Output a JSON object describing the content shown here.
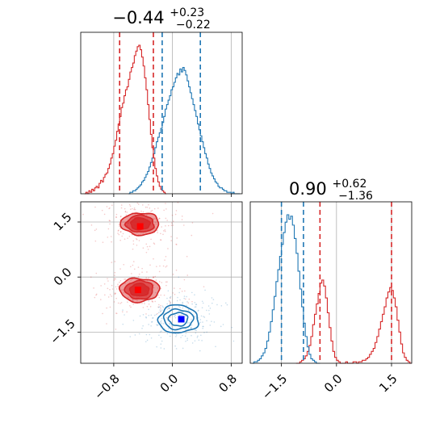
{
  "chart_data": {
    "type": "corner",
    "colors": {
      "series_a": "#d62728",
      "series_b": "#1f77b4",
      "marker_a": "#ff0000",
      "marker_b": "#0000ff",
      "grid": "#b0b0b0"
    },
    "params": [
      {
        "title": {
          "value": "−0.44",
          "plus": "+0.23",
          "minus": "−0.22"
        },
        "range": [
          -1.25,
          0.95
        ],
        "ticks": [
          -0.8,
          0.0,
          0.8
        ],
        "tick_labels": [
          "−0.8",
          "0.0",
          "0.8"
        ],
        "quantiles": {
          "series_a": [
            -0.72,
            -0.26
          ],
          "series_b": [
            -0.14,
            0.38
          ]
        }
      },
      {
        "title": {
          "value": "0.90",
          "plus": "+0.62",
          "minus": "−1.36"
        },
        "range": [
          -2.35,
          2.05
        ],
        "ticks": [
          -1.5,
          0.0,
          1.5
        ],
        "tick_labels": [
          "−1.5",
          "0.0",
          "1.5"
        ],
        "quantiles": {
          "series_a": [
            -0.45,
            1.5
          ],
          "series_b": [
            -1.5,
            -0.9
          ]
        }
      }
    ],
    "histograms": {
      "p1": {
        "series_a": {
          "bins": [
            -1.2,
            -1.18,
            -1.16,
            -1.14,
            -1.12,
            -1.1,
            -1.08,
            -1.06,
            -1.04,
            -1.02,
            -1.0,
            -0.98,
            -0.96,
            -0.94,
            -0.92,
            -0.9,
            -0.88,
            -0.86,
            -0.84,
            -0.82,
            -0.8,
            -0.78,
            -0.76,
            -0.74,
            -0.72,
            -0.7,
            -0.68,
            -0.66,
            -0.64,
            -0.62,
            -0.6,
            -0.58,
            -0.56,
            -0.54,
            -0.52,
            -0.5,
            -0.48,
            -0.46,
            -0.44,
            -0.42,
            -0.4,
            -0.38,
            -0.36,
            -0.34,
            -0.32,
            -0.3,
            -0.28,
            -0.26,
            -0.24,
            -0.22,
            -0.2,
            -0.18,
            -0.16,
            -0.14,
            -0.12,
            -0.1
          ],
          "counts": [
            0.0,
            0.01,
            0.0,
            0.02,
            0.01,
            0.03,
            0.02,
            0.04,
            0.05,
            0.04,
            0.07,
            0.09,
            0.08,
            0.11,
            0.13,
            0.14,
            0.17,
            0.2,
            0.24,
            0.27,
            0.32,
            0.36,
            0.42,
            0.47,
            0.52,
            0.58,
            0.61,
            0.66,
            0.7,
            0.72,
            0.77,
            0.82,
            0.85,
            0.88,
            0.93,
            0.96,
            0.99,
            1.0,
            0.97,
            0.92,
            0.86,
            0.78,
            0.7,
            0.6,
            0.5,
            0.4,
            0.31,
            0.24,
            0.17,
            0.12,
            0.08,
            0.05,
            0.03,
            0.02,
            0.01,
            0.0
          ]
        },
        "series_b": {
          "bins": [
            -0.6,
            -0.58,
            -0.56,
            -0.54,
            -0.52,
            -0.5,
            -0.48,
            -0.46,
            -0.44,
            -0.42,
            -0.4,
            -0.38,
            -0.36,
            -0.34,
            -0.32,
            -0.3,
            -0.28,
            -0.26,
            -0.24,
            -0.22,
            -0.2,
            -0.18,
            -0.16,
            -0.14,
            -0.12,
            -0.1,
            -0.08,
            -0.06,
            -0.04,
            -0.02,
            0.0,
            0.02,
            0.04,
            0.06,
            0.08,
            0.1,
            0.12,
            0.14,
            0.16,
            0.18,
            0.2,
            0.22,
            0.24,
            0.26,
            0.28,
            0.3,
            0.32,
            0.34,
            0.36,
            0.38,
            0.4,
            0.42,
            0.44,
            0.46,
            0.48,
            0.5,
            0.52,
            0.54,
            0.56,
            0.58,
            0.6,
            0.62,
            0.64,
            0.66,
            0.68,
            0.7,
            0.72,
            0.74,
            0.76,
            0.78,
            0.8,
            0.82,
            0.84,
            0.86,
            0.88,
            0.9
          ],
          "counts": [
            0.0,
            0.01,
            0.01,
            0.02,
            0.02,
            0.03,
            0.04,
            0.05,
            0.06,
            0.08,
            0.09,
            0.11,
            0.13,
            0.15,
            0.18,
            0.21,
            0.24,
            0.27,
            0.31,
            0.35,
            0.38,
            0.41,
            0.44,
            0.48,
            0.52,
            0.57,
            0.6,
            0.63,
            0.66,
            0.7,
            0.72,
            0.75,
            0.78,
            0.81,
            0.8,
            0.84,
            0.82,
            0.85,
            0.83,
            0.8,
            0.76,
            0.72,
            0.68,
            0.64,
            0.6,
            0.56,
            0.52,
            0.47,
            0.43,
            0.39,
            0.35,
            0.31,
            0.27,
            0.24,
            0.2,
            0.17,
            0.14,
            0.12,
            0.1,
            0.08,
            0.07,
            0.05,
            0.04,
            0.04,
            0.03,
            0.02,
            0.02,
            0.01,
            0.01,
            0.01,
            0.0,
            0.01,
            0.0,
            0.0,
            0.0,
            0.0
          ]
        }
      },
      "p2": {
        "series_a": {
          "bins": [
            -1.1,
            -1.05,
            -1.0,
            -0.95,
            -0.9,
            -0.85,
            -0.8,
            -0.75,
            -0.7,
            -0.65,
            -0.6,
            -0.55,
            -0.5,
            -0.45,
            -0.4,
            -0.35,
            -0.3,
            -0.25,
            -0.2,
            -0.15,
            -0.1,
            -0.05,
            0.0,
            0.05,
            0.1,
            0.15,
            0.2,
            0.25,
            0.3,
            0.35,
            0.4,
            0.45,
            0.5,
            0.55,
            0.6,
            0.65,
            0.7,
            0.75,
            0.8,
            0.85,
            0.9,
            0.95,
            1.0,
            1.05,
            1.1,
            1.15,
            1.2,
            1.25,
            1.3,
            1.35,
            1.4,
            1.45,
            1.5,
            1.55,
            1.6,
            1.65,
            1.7,
            1.75,
            1.8,
            1.85,
            1.9,
            1.95,
            2.0
          ],
          "counts": [
            0.0,
            0.0,
            0.01,
            0.02,
            0.03,
            0.05,
            0.08,
            0.12,
            0.18,
            0.26,
            0.33,
            0.4,
            0.47,
            0.54,
            0.56,
            0.52,
            0.44,
            0.34,
            0.24,
            0.15,
            0.08,
            0.04,
            0.02,
            0.01,
            0.0,
            0.0,
            0.0,
            0.01,
            0.0,
            0.0,
            0.0,
            0.01,
            0.01,
            0.0,
            0.01,
            0.01,
            0.02,
            0.02,
            0.03,
            0.04,
            0.06,
            0.08,
            0.1,
            0.14,
            0.18,
            0.23,
            0.28,
            0.33,
            0.38,
            0.44,
            0.48,
            0.51,
            0.49,
            0.44,
            0.38,
            0.29,
            0.21,
            0.13,
            0.07,
            0.04,
            0.02,
            0.01,
            0.0
          ]
        },
        "series_b": {
          "bins": [
            -2.3,
            -2.25,
            -2.2,
            -2.15,
            -2.1,
            -2.05,
            -2.0,
            -1.95,
            -1.9,
            -1.85,
            -1.8,
            -1.75,
            -1.7,
            -1.65,
            -1.6,
            -1.55,
            -1.5,
            -1.45,
            -1.4,
            -1.35,
            -1.3,
            -1.25,
            -1.2,
            -1.15,
            -1.1,
            -1.05,
            -1.0,
            -0.95,
            -0.9,
            -0.85,
            -0.8,
            -0.75,
            -0.7,
            -0.65,
            -0.6,
            -0.55,
            -0.5
          ],
          "counts": [
            0.0,
            0.01,
            0.01,
            0.02,
            0.03,
            0.05,
            0.07,
            0.1,
            0.15,
            0.21,
            0.28,
            0.36,
            0.45,
            0.55,
            0.63,
            0.72,
            0.8,
            0.88,
            0.95,
            1.0,
            0.97,
            0.99,
            0.93,
            0.84,
            0.74,
            0.62,
            0.5,
            0.38,
            0.27,
            0.18,
            0.11,
            0.06,
            0.03,
            0.02,
            0.01,
            0.0,
            0.0
          ]
        }
      }
    },
    "scatter2d": {
      "series_a": [
        {
          "center": [
            -0.44,
            1.45
          ],
          "contours_std": [
            [
              0.13,
              0.16
            ],
            [
              0.19,
              0.23
            ],
            [
              0.26,
              0.3
            ]
          ],
          "filled": true
        },
        {
          "center": [
            -0.45,
            -0.35
          ],
          "contours_std": [
            [
              0.13,
              0.17
            ],
            [
              0.19,
              0.25
            ],
            [
              0.27,
              0.32
            ]
          ],
          "filled": true
        }
      ],
      "series_b": [
        {
          "center": [
            0.08,
            -1.15
          ],
          "contours_std": [
            [
              0.13,
              0.18
            ],
            [
              0.2,
              0.27
            ],
            [
              0.27,
              0.38
            ]
          ],
          "filled": false
        }
      ],
      "markers": {
        "series_a": [
          [
            -0.44,
            1.38
          ],
          [
            -0.47,
            -0.35
          ]
        ],
        "series_b": [
          [
            0.12,
            -1.15
          ]
        ]
      },
      "ylim": [
        -2.35,
        2.05
      ],
      "yticks": [
        1.5,
        0.0,
        -1.5
      ],
      "ytick_labels": [
        "1.5",
        "0.0",
        "−1.5"
      ]
    },
    "grid": true
  }
}
